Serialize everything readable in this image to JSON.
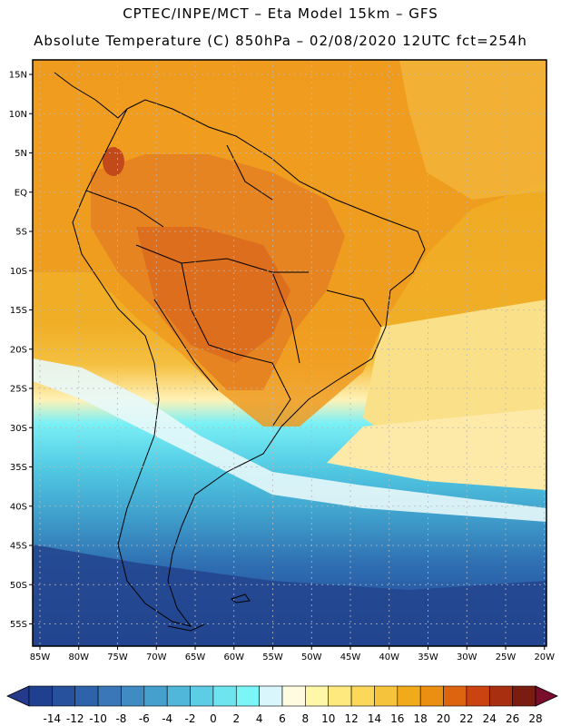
{
  "header": {
    "line1": "CPTEC/INPE/MCT –  Eta Model 15km – GFS",
    "line2": "Absolute Temperature (C) 850hPa – 02/08/2020 12UTC fct=254h"
  },
  "map": {
    "lat_labels": [
      "15N",
      "10N",
      "5N",
      "EQ",
      "5S",
      "10S",
      "15S",
      "20S",
      "25S",
      "30S",
      "35S",
      "40S",
      "45S",
      "50S",
      "55S"
    ],
    "lon_labels": [
      "85W",
      "80W",
      "75W",
      "70W",
      "65W",
      "60W",
      "55W",
      "50W",
      "45W",
      "40W",
      "35W",
      "30W",
      "25W",
      "20W"
    ]
  },
  "colorbar": {
    "labels": [
      "-14",
      "-12",
      "-10",
      "-8",
      "-6",
      "-4",
      "-2",
      "0",
      "2",
      "4",
      "6",
      "8",
      "10",
      "12",
      "14",
      "16",
      "18",
      "20",
      "22",
      "24",
      "26",
      "28"
    ],
    "colors": [
      "#1f3f8f",
      "#27519c",
      "#2e63ab",
      "#3a77b8",
      "#3f8bc2",
      "#45a0cd",
      "#50b6da",
      "#5dcde6",
      "#6de4ee",
      "#7af6f8",
      "#d8f6fc",
      "#fffbe0",
      "#fff7a8",
      "#fde97d",
      "#fbd85a",
      "#f6c43c",
      "#f1aa1a",
      "#ea8f12",
      "#de6510",
      "#cb4310",
      "#a83010",
      "#7a1c10"
    ],
    "under_color": "#253a8a",
    "over_color": "#7a0c2c"
  }
}
